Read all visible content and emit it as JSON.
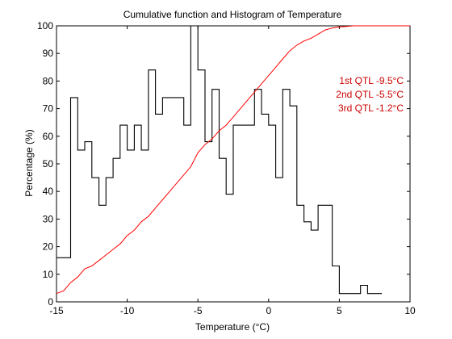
{
  "chart_data": {
    "type": "line",
    "title": "Cumulative function and Histogram of Temperature",
    "xlabel": "Temperature (°C)",
    "ylabel": "Percentage (%)",
    "xlim": [
      -15,
      10
    ],
    "ylim": [
      0,
      100
    ],
    "xticks": [
      -15,
      -10,
      -5,
      0,
      5,
      10
    ],
    "xtick_labels": [
      "-15",
      "-10",
      "-5",
      "0",
      "5",
      "10"
    ],
    "yticks": [
      0,
      10,
      20,
      30,
      40,
      50,
      60,
      70,
      80,
      90,
      100
    ],
    "ytick_labels": [
      "0",
      "10",
      "20",
      "30",
      "40",
      "50",
      "60",
      "70",
      "80",
      "90",
      "100"
    ],
    "grid": false,
    "colors": {
      "histogram": "#000000",
      "cumulative": "#ff0000",
      "annotation": "#cc0000",
      "axes": "#000000"
    },
    "series": [
      {
        "style": "step",
        "bin_edges": [
          -15,
          -14,
          -13.5,
          -13,
          -12.5,
          -12,
          -11.5,
          -11,
          -10.5,
          -10,
          -9.5,
          -9,
          -8.5,
          -8,
          -7.5,
          -7,
          -6.5,
          -6,
          -5.5,
          -5,
          -4.5,
          -4,
          -3.5,
          -3,
          -2.5,
          -2,
          -1.5,
          -1,
          -0.5,
          0,
          0.5,
          1,
          1.5,
          2,
          2.5,
          3,
          3.5,
          4,
          4.5,
          5,
          5.5,
          6,
          6.5,
          7,
          7.5,
          8
        ],
        "values": [
          16,
          74,
          55,
          58,
          45,
          35,
          45,
          52,
          64,
          55,
          64,
          55,
          84,
          68,
          74,
          74,
          74,
          64,
          100,
          84,
          58,
          77,
          52,
          39,
          64,
          64,
          64,
          77,
          68,
          64,
          45,
          77,
          71,
          35,
          29,
          26,
          35,
          35,
          13,
          3,
          3,
          3,
          6,
          3,
          3
        ]
      },
      {
        "style": "line",
        "x": [
          -15,
          -14.5,
          -14,
          -13.5,
          -13,
          -12.5,
          -12,
          -11.5,
          -11,
          -10.5,
          -10,
          -9.5,
          -9,
          -8.5,
          -8,
          -7.5,
          -7,
          -6.5,
          -6,
          -5.5,
          -5,
          -4.5,
          -4,
          -3.5,
          -3,
          -2.5,
          -2,
          -1.5,
          -1,
          -0.5,
          0,
          0.5,
          1,
          1.5,
          2,
          2.5,
          3,
          3.5,
          4,
          4.5,
          5,
          5.5,
          6,
          6.5,
          7,
          8,
          10
        ],
        "y": [
          3,
          4,
          7,
          9,
          12,
          13,
          15,
          17,
          19,
          21,
          24,
          26,
          29,
          31,
          34,
          37,
          40,
          43,
          46,
          49,
          54,
          57,
          59,
          62,
          64,
          67,
          70,
          73,
          76,
          79,
          82,
          85,
          88,
          91,
          93,
          94.5,
          95.5,
          97,
          98.5,
          99.2,
          99.6,
          99.8,
          100,
          100,
          100,
          100,
          100
        ]
      }
    ],
    "annotations": [
      {
        "text": "1st QTL -9.5°C"
      },
      {
        "text": "2nd QTL -5.5°C"
      },
      {
        "text": "3rd QTL -1.2°C"
      }
    ]
  }
}
